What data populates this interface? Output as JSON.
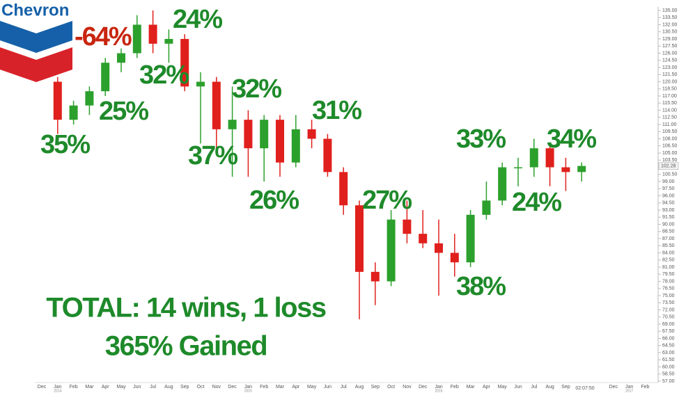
{
  "chart_data": {
    "type": "candlestick",
    "logo_text": "Chevron",
    "categories": [
      "Dec",
      "Jan",
      "Feb",
      "Mar",
      "Apr",
      "May",
      "Jun",
      "Jul",
      "Aug",
      "Sep",
      "Oct",
      "Nov",
      "Dec",
      "Jan",
      "Feb",
      "Mar",
      "Apr",
      "May",
      "Jun",
      "Jul",
      "Aug",
      "Sep",
      "Oct",
      "Nov",
      "Dec",
      "Jan",
      "Feb",
      "Mar",
      "Apr",
      "May",
      "Jun",
      "Jul",
      "Aug",
      "Sep",
      null,
      null,
      "Dec",
      "Jan",
      "Feb"
    ],
    "year_labels": [
      "2014",
      "2015",
      "2016",
      "2017"
    ],
    "timestamp": "02:07:50",
    "candles": {
      "open": [
        null,
        120,
        112,
        115,
        118,
        124,
        126,
        132,
        128,
        129,
        119,
        120,
        110,
        112,
        106,
        112,
        103,
        110,
        108,
        101,
        94,
        80,
        78,
        91,
        88,
        86,
        84,
        82,
        92,
        95,
        102,
        102,
        106,
        102,
        101,
        null,
        null,
        null,
        null
      ],
      "high": [
        null,
        121,
        116,
        119,
        125,
        127,
        134,
        135,
        131,
        130,
        122,
        121,
        119,
        114,
        113,
        113,
        113,
        112,
        109,
        102,
        95,
        82,
        93,
        95,
        93,
        91,
        88,
        93,
        99,
        103,
        104,
        108,
        107,
        104,
        103,
        null,
        null,
        null,
        null
      ],
      "low": [
        null,
        109,
        111,
        113,
        117,
        122,
        125,
        126,
        124,
        118,
        107,
        106,
        100,
        100,
        99,
        100,
        102,
        106,
        100,
        92,
        70,
        73,
        77,
        86,
        85,
        75,
        79,
        81,
        91,
        94,
        98,
        100,
        98,
        97,
        99,
        null,
        null,
        null,
        null
      ],
      "close": [
        null,
        112,
        115,
        118,
        124,
        126,
        132,
        128,
        129,
        119,
        120,
        110,
        112,
        106,
        112,
        103,
        110,
        108,
        101,
        94,
        80,
        78,
        91,
        88,
        86,
        84,
        82,
        92,
        95,
        102,
        102,
        106,
        102,
        101,
        102.28,
        null,
        null,
        null,
        null
      ]
    },
    "up_color": "#2ca02c",
    "down_color": "#e0201c",
    "last_price": {
      "value": 102.28,
      "label": "102.28"
    },
    "ylim": [
      57,
      135
    ],
    "yticks": [
      {
        "value": 135,
        "label": "135.00"
      },
      {
        "value": 133.5,
        "label": "133.50"
      },
      {
        "value": 132,
        "label": "132.00"
      },
      {
        "value": 130.5,
        "label": "130.50"
      },
      {
        "value": 129,
        "label": "129.00"
      },
      {
        "value": 127.5,
        "label": "127.50"
      },
      {
        "value": 126,
        "label": "126.00"
      },
      {
        "value": 124.5,
        "label": "124.50"
      },
      {
        "value": 123,
        "label": "123.00"
      },
      {
        "value": 121.5,
        "label": "121.50"
      },
      {
        "value": 120,
        "label": "120.00"
      },
      {
        "value": 118.5,
        "label": "118.50"
      },
      {
        "value": 117,
        "label": "117.00"
      },
      {
        "value": 115.5,
        "label": "115.50"
      },
      {
        "value": 114,
        "label": "114.00"
      },
      {
        "value": 112.5,
        "label": "112.50"
      },
      {
        "value": 111,
        "label": "111.00"
      },
      {
        "value": 109.5,
        "label": "109.50"
      },
      {
        "value": 108,
        "label": "108.00"
      },
      {
        "value": 106.5,
        "label": "106.50"
      },
      {
        "value": 105,
        "label": "105.00"
      },
      {
        "value": 103.5,
        "label": "103.50"
      },
      {
        "value": 102,
        "label": "102.00"
      },
      {
        "value": 100.5,
        "label": "100.50"
      },
      {
        "value": 99,
        "label": "99.00"
      },
      {
        "value": 97.5,
        "label": "97.50"
      },
      {
        "value": 96,
        "label": "96.00"
      },
      {
        "value": 94.5,
        "label": "94.50"
      },
      {
        "value": 93,
        "label": "93.00"
      },
      {
        "value": 91.5,
        "label": "91.50"
      },
      {
        "value": 90,
        "label": "90.00"
      },
      {
        "value": 88.5,
        "label": "88.50"
      },
      {
        "value": 87,
        "label": "87.00"
      },
      {
        "value": 85.5,
        "label": "85.50"
      },
      {
        "value": 84,
        "label": "84.00"
      },
      {
        "value": 82.5,
        "label": "82.50"
      },
      {
        "value": 81,
        "label": "81.00"
      },
      {
        "value": 79.5,
        "label": "79.50"
      },
      {
        "value": 78,
        "label": "78.00"
      },
      {
        "value": 76.5,
        "label": "76.50"
      },
      {
        "value": 75,
        "label": "75.00"
      },
      {
        "value": 73.5,
        "label": "73.50"
      },
      {
        "value": 72,
        "label": "72.00"
      },
      {
        "value": 70.5,
        "label": "70.50"
      },
      {
        "value": 69,
        "label": "69.00"
      },
      {
        "value": 67.5,
        "label": "67.50"
      },
      {
        "value": 66,
        "label": "66.00"
      },
      {
        "value": 64.5,
        "label": "64.50"
      },
      {
        "value": 63,
        "label": "63.00"
      },
      {
        "value": 61.5,
        "label": "61.50"
      },
      {
        "value": 60,
        "label": "60.00"
      },
      {
        "value": 58.5,
        "label": "58.50"
      },
      {
        "value": 57,
        "label": "57.00"
      }
    ],
    "annotations": [
      {
        "text": "-64%",
        "color": "#c8250f"
      },
      {
        "text": "24%",
        "color": "#1e8a2a"
      },
      {
        "text": "32%",
        "color": "#1e8a2a"
      },
      {
        "text": "25%",
        "color": "#1e8a2a"
      },
      {
        "text": "35%",
        "color": "#1e8a2a"
      },
      {
        "text": "32%",
        "color": "#1e8a2a"
      },
      {
        "text": "37%",
        "color": "#1e8a2a"
      },
      {
        "text": "31%",
        "color": "#1e8a2a"
      },
      {
        "text": "26%",
        "color": "#1e8a2a"
      },
      {
        "text": "27%",
        "color": "#1e8a2a"
      },
      {
        "text": "33%",
        "color": "#1e8a2a"
      },
      {
        "text": "34%",
        "color": "#1e8a2a"
      },
      {
        "text": "24%",
        "color": "#1e8a2a"
      },
      {
        "text": "38%",
        "color": "#1e8a2a"
      }
    ],
    "summary": [
      "TOTAL:  14 wins, 1 loss",
      "365% Gained"
    ]
  }
}
